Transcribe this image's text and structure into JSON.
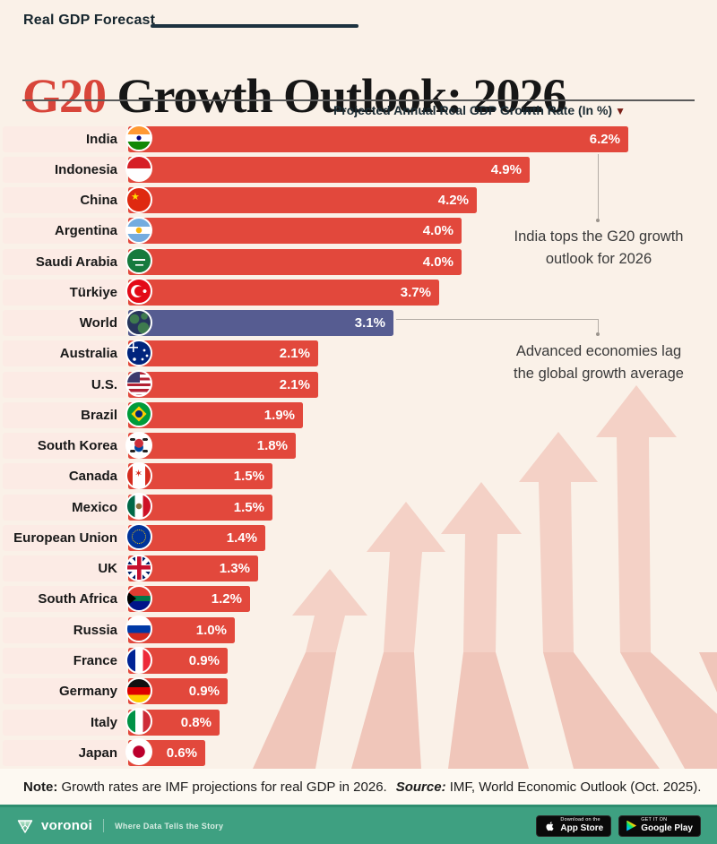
{
  "header": {
    "kicker": "Real GDP Forecast",
    "title_accent": "G20",
    "title_rest": " Growth Outlook: 2026",
    "subtitle": "Projected Annual Real GDP Growth Rate (In %)",
    "sort_arrow": "▼"
  },
  "chart_data": {
    "type": "bar",
    "orientation": "horizontal",
    "title": "G20 Growth Outlook: 2026",
    "subtitle": "Projected Annual Real GDP Growth Rate (In %)",
    "value_unit": "%",
    "value_range": [
      0,
      6.2
    ],
    "bar_color": "#e2483c",
    "highlight_bar_color": "#565c91",
    "rows": [
      {
        "country": "India",
        "flag": "india",
        "value": 6.2,
        "label": "6.2%",
        "highlight": false
      },
      {
        "country": "Indonesia",
        "flag": "indonesia",
        "value": 4.9,
        "label": "4.9%",
        "highlight": false
      },
      {
        "country": "China",
        "flag": "china",
        "value": 4.2,
        "label": "4.2%",
        "highlight": false
      },
      {
        "country": "Argentina",
        "flag": "argentina",
        "value": 4.0,
        "label": "4.0%",
        "highlight": false
      },
      {
        "country": "Saudi Arabia",
        "flag": "saudi-arabia",
        "value": 4.0,
        "label": "4.0%",
        "highlight": false
      },
      {
        "country": "Türkiye",
        "flag": "turkiye",
        "value": 3.7,
        "label": "3.7%",
        "highlight": false
      },
      {
        "country": "World",
        "flag": "world",
        "value": 3.1,
        "label": "3.1%",
        "highlight": true
      },
      {
        "country": "Australia",
        "flag": "australia",
        "value": 2.1,
        "label": "2.1%",
        "highlight": false
      },
      {
        "country": "U.S.",
        "flag": "us",
        "value": 2.1,
        "label": "2.1%",
        "highlight": false
      },
      {
        "country": "Brazil",
        "flag": "brazil",
        "value": 1.9,
        "label": "1.9%",
        "highlight": false
      },
      {
        "country": "South Korea",
        "flag": "south-korea",
        "value": 1.8,
        "label": "1.8%",
        "highlight": false
      },
      {
        "country": "Canada",
        "flag": "canada",
        "value": 1.5,
        "label": "1.5%",
        "highlight": false
      },
      {
        "country": "Mexico",
        "flag": "mexico",
        "value": 1.5,
        "label": "1.5%",
        "highlight": false
      },
      {
        "country": "European Union",
        "flag": "eu",
        "value": 1.4,
        "label": "1.4%",
        "highlight": false
      },
      {
        "country": "UK",
        "flag": "uk",
        "value": 1.3,
        "label": "1.3%",
        "highlight": false
      },
      {
        "country": "South Africa",
        "flag": "south-africa",
        "value": 1.2,
        "label": "1.2%",
        "highlight": false
      },
      {
        "country": "Russia",
        "flag": "russia",
        "value": 1.0,
        "label": "1.0%",
        "highlight": false
      },
      {
        "country": "France",
        "flag": "france",
        "value": 0.9,
        "label": "0.9%",
        "highlight": false
      },
      {
        "country": "Germany",
        "flag": "germany",
        "value": 0.9,
        "label": "0.9%",
        "highlight": false
      },
      {
        "country": "Italy",
        "flag": "italy",
        "value": 0.8,
        "label": "0.8%",
        "highlight": false
      },
      {
        "country": "Japan",
        "flag": "japan",
        "value": 0.6,
        "label": "0.6%",
        "highlight": false
      }
    ]
  },
  "annotations": {
    "india": "India tops the G20 growth\noutlook for 2026",
    "world": "Advanced economies lag\nthe global growth average"
  },
  "note": {
    "note_label": "Note:",
    "note_text": " Growth rates are IMF projections for real GDP in 2026.",
    "source_label": "Source:",
    "source_text": " IMF, World Economic Outlook (Oct. 2025)."
  },
  "bottom_bar": {
    "brand": "voronoi",
    "tagline": "Where Data Tells the Story",
    "bar_color": "#3ea081",
    "app_store_badge": {
      "small": "Download on the",
      "big": "App Store"
    },
    "google_play_badge": {
      "small": "GET IT ON",
      "big": "Google Play"
    }
  }
}
